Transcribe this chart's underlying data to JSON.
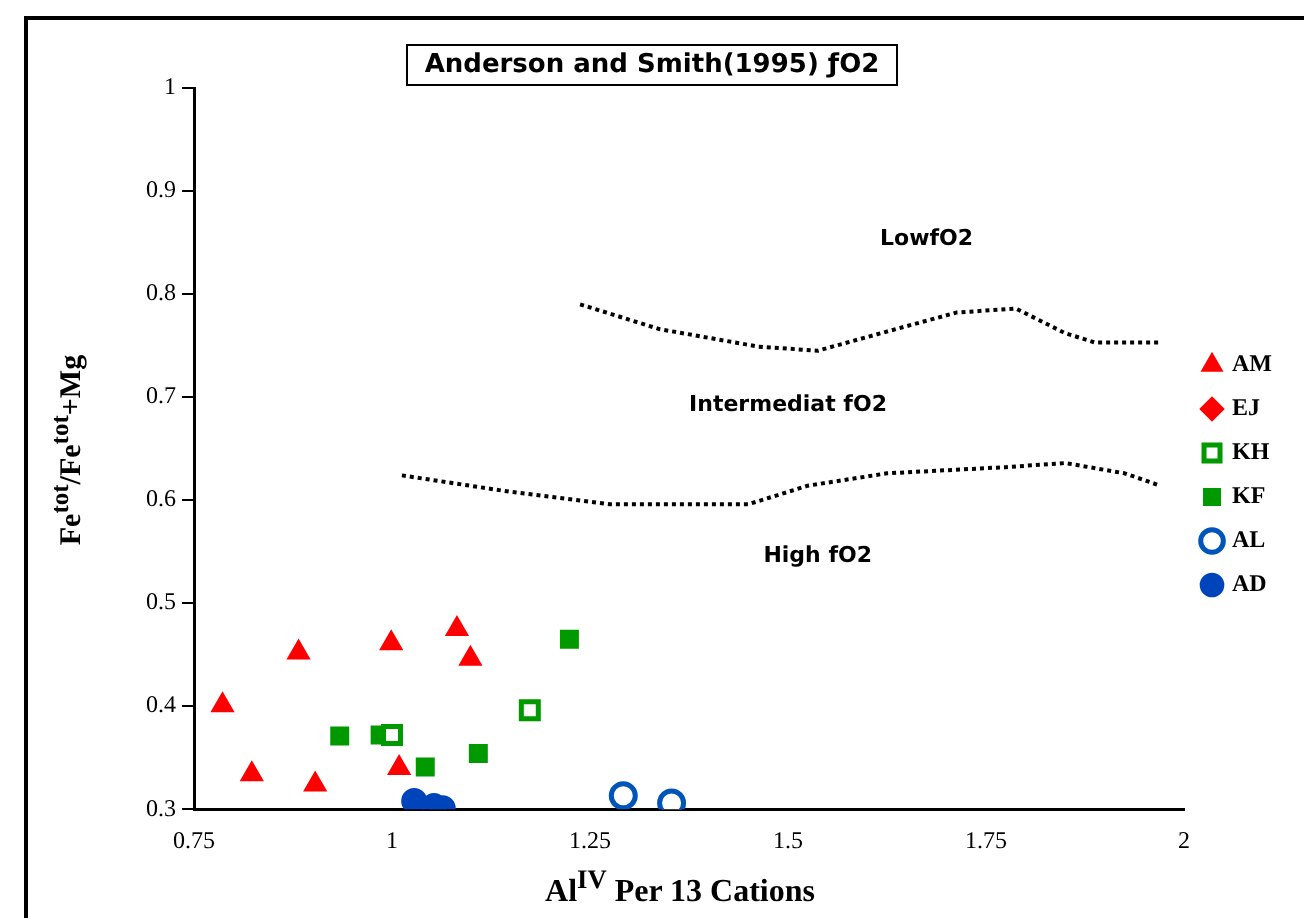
{
  "chart_data": {
    "type": "scatter",
    "title": "Anderson and Smith(1995) ƒO2",
    "xlabel": "Al$^{IV}$ Per 13 Cations",
    "ylabel": "Fe$^{tot}$/Fe$^{tot}$+Mg",
    "xlim": [
      0.75,
      2
    ],
    "xticks": [
      0.75,
      1,
      1.25,
      1.5,
      1.75,
      2
    ],
    "ylim": [
      0.3,
      1
    ],
    "yticks": [
      0.3,
      0.4,
      0.5,
      0.6,
      0.7,
      0.8,
      0.9,
      1
    ],
    "grid": false,
    "legend": "right",
    "series": [
      {
        "name": "AM",
        "color": "#ff0000",
        "marker": "triangle",
        "x": [
          0.786,
          0.823,
          0.882,
          0.903,
          0.999,
          1.009,
          1.082,
          1.099
        ],
        "values": [
          0.401,
          0.334,
          0.452,
          0.324,
          0.461,
          0.34,
          0.475,
          0.446
        ]
      },
      {
        "name": "EJ",
        "color": "#ff0000",
        "marker": "diamond"
      },
      {
        "name": "KH",
        "color": "#009900",
        "marker": "square-open",
        "x": [
          1.0,
          1.174
        ],
        "values": [
          0.372,
          0.396
        ]
      },
      {
        "name": "KF",
        "color": "#009900",
        "marker": "square",
        "x": [
          0.934,
          0.985,
          1.042,
          1.109,
          1.224
        ],
        "values": [
          0.371,
          0.372,
          0.341,
          0.354,
          0.465
        ]
      },
      {
        "name": "AL",
        "color": "#0055bb",
        "marker": "circle-open",
        "x": [
          1.292,
          1.353
        ],
        "values": [
          0.313,
          0.306
        ]
      },
      {
        "name": "AD",
        "color": "#0044bb",
        "marker": "circle",
        "x": [
          1.028,
          1.053,
          1.064
        ],
        "values": [
          0.308,
          0.303,
          0.301
        ]
      },
      {
        "type": "line",
        "color": "#000000",
        "line_style": "dotted",
        "marker": "none",
        "x": [
          1.2375,
          1.3375,
          1.4625,
          1.5375,
          1.6125,
          1.7125,
          1.7875,
          1.85,
          1.8875,
          1.9325,
          1.97
        ],
        "values": [
          0.79,
          0.766,
          0.749,
          0.745,
          0.761,
          0.782,
          0.786,
          0.762,
          0.753,
          0.753,
          0.753
        ]
      },
      {
        "type": "line",
        "color": "#000000",
        "line_style": "dotted",
        "marker": "none",
        "x": [
          1.0125,
          1.15,
          1.275,
          1.45,
          1.525,
          1.625,
          1.775,
          1.85,
          1.925,
          1.97
        ],
        "values": [
          0.624,
          0.608,
          0.596,
          0.596,
          0.614,
          0.626,
          0.632,
          0.636,
          0.626,
          0.614
        ]
      }
    ],
    "annotations": [
      "LowfO2",
      "Intermediat fO2",
      "High fO2"
    ]
  }
}
